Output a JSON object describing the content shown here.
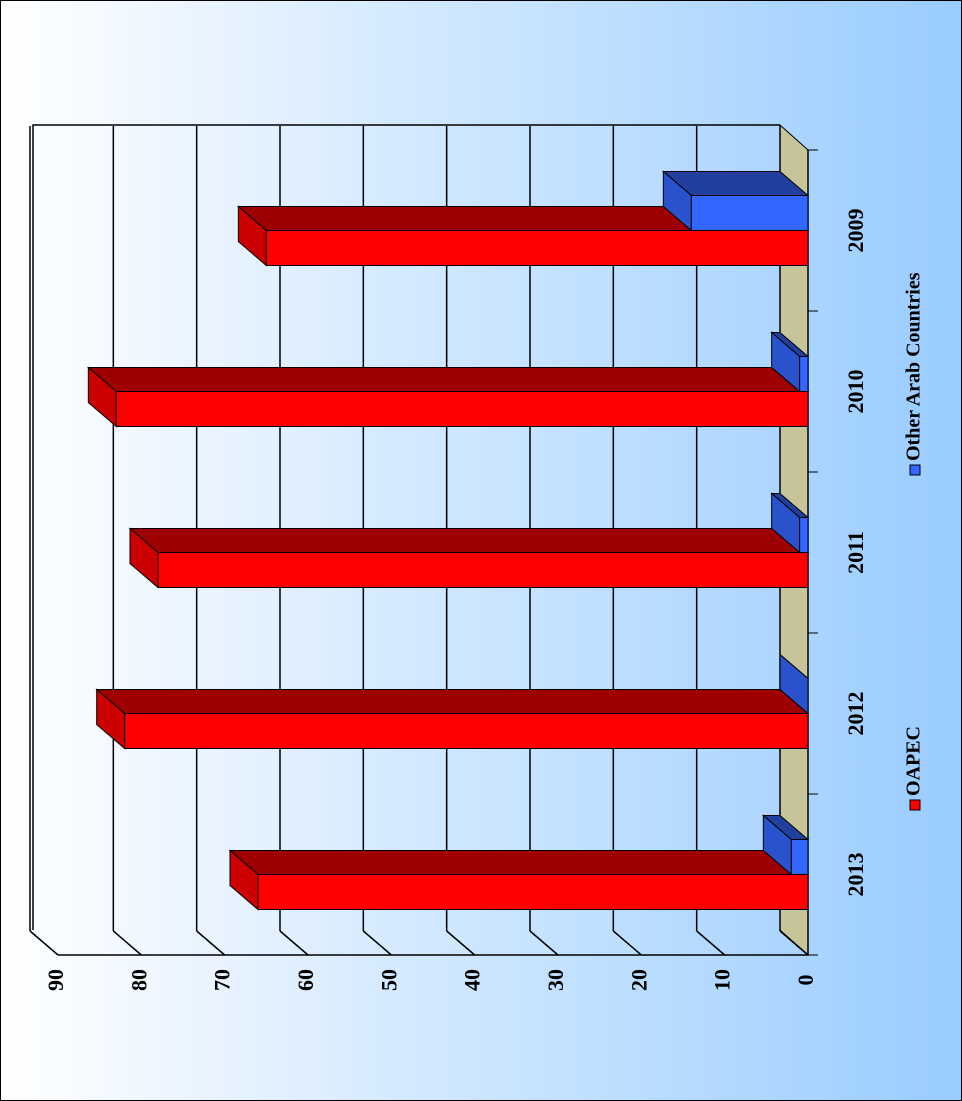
{
  "chart_data": {
    "type": "bar3d",
    "categories": [
      "2013",
      "2012",
      "2011",
      "2010",
      "2009"
    ],
    "series": [
      {
        "name": "OAPEC",
        "color": "#ff0000",
        "values": [
          66,
          82,
          78,
          83,
          65
        ]
      },
      {
        "name": "Other Arab Countries",
        "color": "#3366ff",
        "values": [
          2,
          0,
          1,
          1,
          14
        ]
      }
    ],
    "ylim": [
      0,
      90
    ],
    "yticks": [
      0,
      10,
      20,
      30,
      40,
      50,
      60,
      70,
      80,
      90
    ],
    "grid": true,
    "legend": "bottom"
  }
}
